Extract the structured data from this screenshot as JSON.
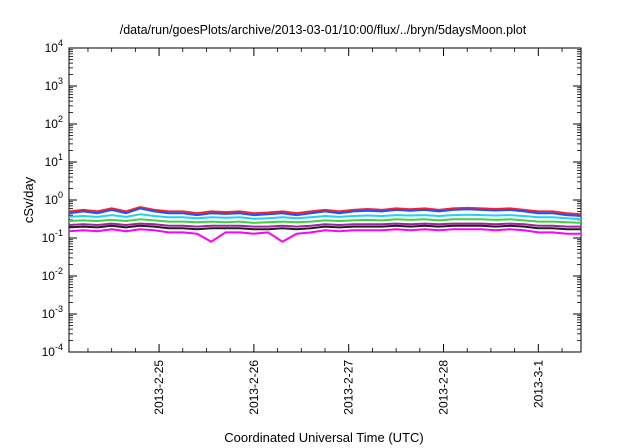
{
  "chart_data": {
    "type": "line",
    "title": "/data/run/goesPlots/archive/2013-03-01/10:00/flux/../bryn/5daysMoon.plot",
    "xlabel": "Coordinated Universal Time (UTC)",
    "ylabel": "cSv/day",
    "yscale": "log",
    "ylim": [
      0.0001,
      10000
    ],
    "xlim": [
      -0.95,
      4.45
    ],
    "x_unit": "days since 2013-2-25 00:00 UTC",
    "x_ticks": [
      {
        "value": 0,
        "label": "2013-2-25"
      },
      {
        "value": 1,
        "label": "2013-2-26"
      },
      {
        "value": 2,
        "label": "2013-2-27"
      },
      {
        "value": 3,
        "label": "2013-2-28"
      },
      {
        "value": 4,
        "label": "2013-3-1"
      }
    ],
    "y_ticks": [
      {
        "value": 0.0001,
        "base": "10",
        "exp": "-4"
      },
      {
        "value": 0.001,
        "base": "10",
        "exp": "-3"
      },
      {
        "value": 0.01,
        "base": "10",
        "exp": "-2"
      },
      {
        "value": 0.1,
        "base": "10",
        "exp": "-1"
      },
      {
        "value": 1,
        "base": "10",
        "exp": "0"
      },
      {
        "value": 10,
        "base": "10",
        "exp": "1"
      },
      {
        "value": 100,
        "base": "10",
        "exp": "2"
      },
      {
        "value": 1000,
        "base": "10",
        "exp": "3"
      },
      {
        "value": 10000,
        "base": "10",
        "exp": "4"
      }
    ],
    "grid": false,
    "legend": "none",
    "x": [
      -0.95,
      -0.8,
      -0.65,
      -0.5,
      -0.35,
      -0.2,
      -0.05,
      0.1,
      0.25,
      0.4,
      0.55,
      0.7,
      0.85,
      1.0,
      1.15,
      1.3,
      1.45,
      1.6,
      1.75,
      1.9,
      2.05,
      2.2,
      2.35,
      2.5,
      2.65,
      2.8,
      2.95,
      3.1,
      3.25,
      3.4,
      3.55,
      3.7,
      3.85,
      4.0,
      4.15,
      4.3,
      4.45
    ],
    "series": [
      {
        "color": "#ff2020",
        "values": [
          0.5,
          0.55,
          0.5,
          0.6,
          0.5,
          0.65,
          0.55,
          0.5,
          0.5,
          0.45,
          0.5,
          0.48,
          0.5,
          0.45,
          0.47,
          0.5,
          0.45,
          0.5,
          0.55,
          0.5,
          0.55,
          0.58,
          0.55,
          0.6,
          0.57,
          0.6,
          0.55,
          0.6,
          0.62,
          0.6,
          0.58,
          0.6,
          0.55,
          0.5,
          0.5,
          0.45,
          0.42
        ]
      },
      {
        "color": "#2050ff",
        "values": [
          0.45,
          0.5,
          0.45,
          0.55,
          0.45,
          0.6,
          0.5,
          0.45,
          0.45,
          0.4,
          0.45,
          0.43,
          0.45,
          0.4,
          0.42,
          0.45,
          0.4,
          0.45,
          0.5,
          0.45,
          0.5,
          0.52,
          0.5,
          0.55,
          0.52,
          0.55,
          0.5,
          0.55,
          0.57,
          0.55,
          0.53,
          0.55,
          0.5,
          0.45,
          0.45,
          0.4,
          0.38
        ]
      },
      {
        "color": "#20d0ff",
        "values": [
          0.36,
          0.38,
          0.36,
          0.4,
          0.36,
          0.42,
          0.38,
          0.35,
          0.35,
          0.33,
          0.35,
          0.34,
          0.35,
          0.32,
          0.33,
          0.35,
          0.33,
          0.35,
          0.38,
          0.36,
          0.38,
          0.39,
          0.38,
          0.4,
          0.39,
          0.4,
          0.38,
          0.4,
          0.41,
          0.4,
          0.39,
          0.4,
          0.38,
          0.35,
          0.35,
          0.33,
          0.31
        ]
      },
      {
        "color": "#40d040",
        "values": [
          0.28,
          0.29,
          0.28,
          0.3,
          0.28,
          0.31,
          0.29,
          0.27,
          0.27,
          0.26,
          0.27,
          0.26,
          0.27,
          0.25,
          0.26,
          0.27,
          0.26,
          0.27,
          0.29,
          0.28,
          0.29,
          0.3,
          0.29,
          0.31,
          0.3,
          0.31,
          0.29,
          0.31,
          0.31,
          0.31,
          0.3,
          0.31,
          0.29,
          0.27,
          0.27,
          0.26,
          0.25
        ]
      },
      {
        "color": "#a020a0",
        "values": [
          0.22,
          0.23,
          0.22,
          0.24,
          0.22,
          0.24,
          0.23,
          0.21,
          0.21,
          0.2,
          0.21,
          0.21,
          0.21,
          0.2,
          0.2,
          0.21,
          0.2,
          0.21,
          0.23,
          0.22,
          0.23,
          0.23,
          0.23,
          0.24,
          0.23,
          0.24,
          0.23,
          0.24,
          0.24,
          0.24,
          0.23,
          0.24,
          0.23,
          0.21,
          0.21,
          0.2,
          0.2
        ]
      },
      {
        "color": "#202020",
        "values": [
          0.19,
          0.2,
          0.19,
          0.21,
          0.19,
          0.21,
          0.2,
          0.18,
          0.18,
          0.17,
          0.18,
          0.18,
          0.18,
          0.17,
          0.17,
          0.18,
          0.17,
          0.18,
          0.2,
          0.19,
          0.2,
          0.2,
          0.2,
          0.21,
          0.2,
          0.21,
          0.2,
          0.21,
          0.21,
          0.21,
          0.2,
          0.21,
          0.2,
          0.18,
          0.18,
          0.17,
          0.17
        ]
      },
      {
        "color": "#ff00ff",
        "values": [
          0.15,
          0.16,
          0.15,
          0.17,
          0.15,
          0.17,
          0.16,
          0.14,
          0.14,
          0.13,
          0.08,
          0.14,
          0.14,
          0.13,
          0.14,
          0.08,
          0.13,
          0.14,
          0.16,
          0.15,
          0.16,
          0.16,
          0.16,
          0.17,
          0.16,
          0.17,
          0.16,
          0.17,
          0.17,
          0.17,
          0.16,
          0.17,
          0.16,
          0.14,
          0.14,
          0.13,
          0.13
        ]
      }
    ]
  }
}
